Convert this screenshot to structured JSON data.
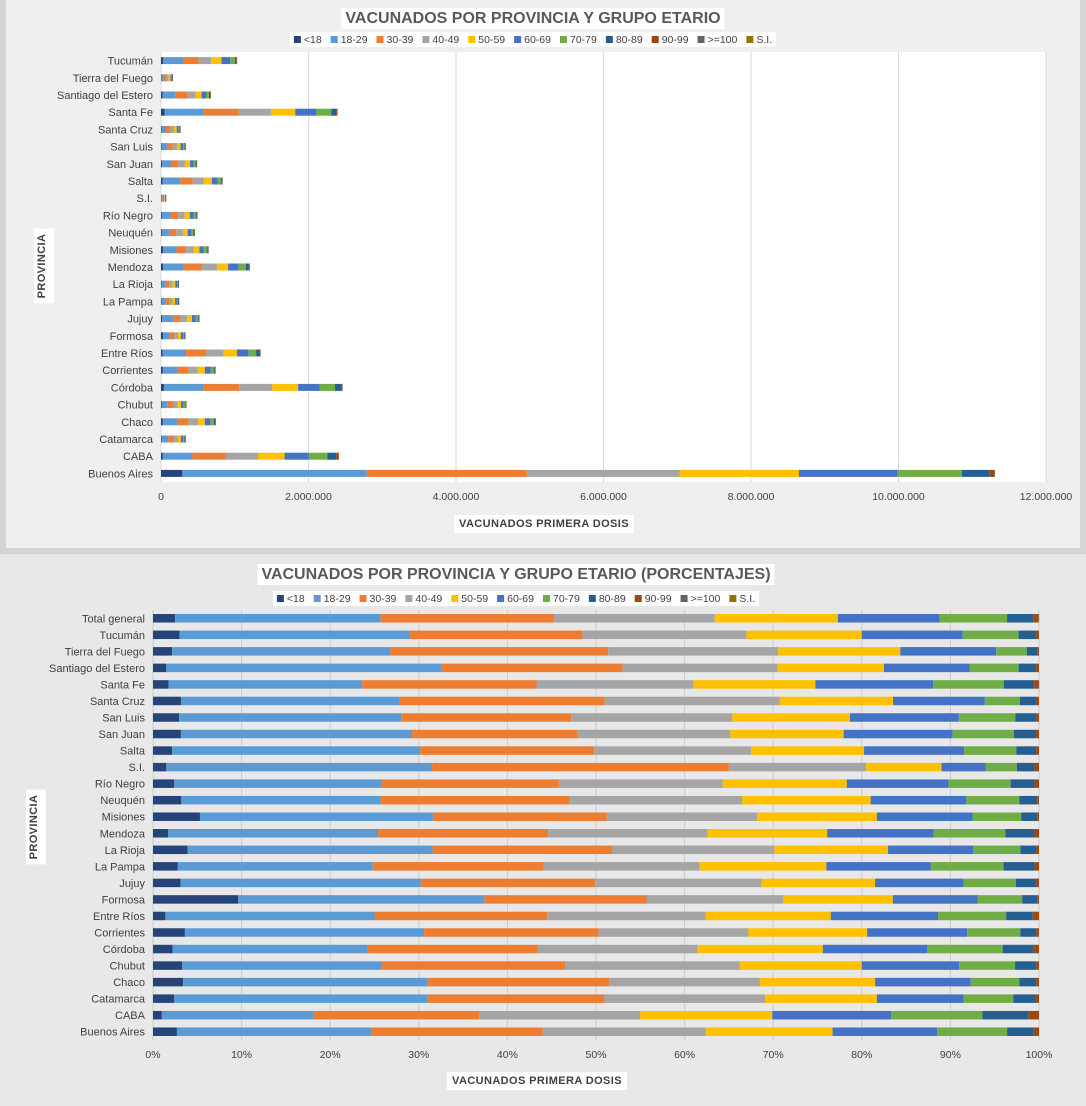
{
  "series_meta": [
    {
      "name": "<18",
      "color": "#264478"
    },
    {
      "name": "18-29",
      "color": "#5b9bd5"
    },
    {
      "name": "30-39",
      "color": "#ed7d31"
    },
    {
      "name": "40-49",
      "color": "#a5a5a5"
    },
    {
      "name": "50-59",
      "color": "#ffc000"
    },
    {
      "name": "60-69",
      "color": "#4472c4"
    },
    {
      "name": "70-79",
      "color": "#70ad47"
    },
    {
      "name": "80-89",
      "color": "#255e91"
    },
    {
      "name": "90-99",
      "color": "#9e480e"
    },
    {
      "name": ">=100",
      "color": "#636363"
    },
    {
      "name": "S.I.",
      "color": "#997300"
    }
  ],
  "chart_data": [
    {
      "type": "bar",
      "orientation": "horizontal",
      "stacked": true,
      "title": "VACUNADOS POR PROVINCIA Y GRUPO ETARIO",
      "xlabel": "VACUNADOS PRIMERA  DOSIS",
      "ylabel": "PROVINCIA",
      "xlim": [
        0,
        12000000
      ],
      "xticks": [
        "0",
        "2.000.000",
        "4.000.000",
        "6.000.000",
        "8.000.000",
        "10.000.000",
        "12.000.000"
      ],
      "xtick_values": [
        0,
        2000000,
        4000000,
        6000000,
        8000000,
        10000000,
        12000000
      ],
      "legend": [
        "<18",
        "18-29",
        "30-39",
        "40-49",
        "50-59",
        "60-69",
        "70-79",
        "80-89",
        "90-99",
        ">=100",
        "S.I."
      ],
      "categories": [
        "Tucumán",
        "Tierra del Fuego",
        "Santiago del Estero",
        "Santa Fe",
        "Santa Cruz",
        "San Luis",
        "San Juan",
        "Salta",
        "S.I.",
        "Río Negro",
        "Neuquén",
        "Misiones",
        "Mendoza",
        "La Rioja",
        "La Pampa",
        "Jujuy",
        "Formosa",
        "Entre Ríos",
        "Corrientes",
        "Córdoba",
        "Chubut",
        "Chaco",
        "Catamarca",
        "CABA",
        "Buenos Aires"
      ],
      "values": [
        [
          30000,
          280000,
          200000,
          170000,
          140000,
          120000,
          60000,
          20000,
          5000,
          300,
          0
        ],
        [
          3000,
          30000,
          40000,
          30000,
          25000,
          15000,
          8000,
          3000,
          500,
          50,
          0
        ],
        [
          20000,
          180000,
          160000,
          110000,
          80000,
          60000,
          40000,
          15000,
          3000,
          200,
          0
        ],
        [
          50000,
          520000,
          480000,
          440000,
          330000,
          290000,
          200000,
          65000,
          12000,
          500,
          0
        ],
        [
          8000,
          60000,
          60000,
          50000,
          35000,
          25000,
          15000,
          4000,
          800,
          50,
          0
        ],
        [
          10000,
          80000,
          70000,
          60000,
          45000,
          35000,
          20000,
          7000,
          1000,
          50,
          0
        ],
        [
          15000,
          120000,
          100000,
          90000,
          70000,
          50000,
          25000,
          10000,
          2000,
          100,
          0
        ],
        [
          20000,
          240000,
          170000,
          150000,
          110000,
          80000,
          40000,
          15000,
          3000,
          200,
          0
        ],
        [
          1000,
          20000,
          20000,
          10000,
          5000,
          3000,
          2000,
          1000,
          100,
          0,
          0
        ],
        [
          12000,
          120000,
          100000,
          90000,
          70000,
          50000,
          30000,
          12000,
          2000,
          100,
          0
        ],
        [
          12000,
          100000,
          95000,
          90000,
          65000,
          50000,
          28000,
          10000,
          2000,
          100,
          0
        ],
        [
          30000,
          180000,
          130000,
          100000,
          80000,
          60000,
          40000,
          15000,
          3000,
          200,
          0
        ],
        [
          30000,
          280000,
          240000,
          210000,
          150000,
          140000,
          100000,
          40000,
          8000,
          300,
          0
        ],
        [
          8000,
          55000,
          50000,
          45000,
          35000,
          25000,
          12000,
          5000,
          800,
          50,
          0
        ],
        [
          6000,
          60000,
          50000,
          40000,
          35000,
          25000,
          15000,
          6000,
          1000,
          50,
          0
        ],
        [
          15000,
          150000,
          100000,
          90000,
          65000,
          50000,
          30000,
          12000,
          2000,
          100,
          0
        ],
        [
          30000,
          90000,
          60000,
          50000,
          40000,
          30000,
          17000,
          7000,
          1000,
          100,
          0
        ],
        [
          20000,
          320000,
          270000,
          240000,
          180000,
          160000,
          100000,
          45000,
          8000,
          300,
          0
        ],
        [
          25000,
          200000,
          150000,
          120000,
          100000,
          80000,
          40000,
          15000,
          3000,
          200,
          0
        ],
        [
          40000,
          540000,
          480000,
          450000,
          350000,
          290000,
          210000,
          80000,
          15000,
          500,
          0
        ],
        [
          12000,
          80000,
          70000,
          65000,
          45000,
          35000,
          20000,
          9000,
          2000,
          100,
          0
        ],
        [
          25000,
          200000,
          150000,
          130000,
          90000,
          75000,
          45000,
          17000,
          3000,
          200,
          0
        ],
        [
          10000,
          90000,
          70000,
          60000,
          40000,
          30000,
          18000,
          8000,
          1000,
          100,
          0
        ],
        [
          25000,
          400000,
          450000,
          440000,
          360000,
          330000,
          250000,
          120000,
          30000,
          1000,
          0
        ],
        [
          290000,
          2500000,
          2170000,
          2070000,
          1620000,
          1340000,
          870000,
          370000,
          70000,
          3000,
          0
        ]
      ]
    },
    {
      "type": "bar",
      "orientation": "horizontal",
      "stacked": true,
      "percent": true,
      "title": "VACUNADOS POR PROVINCIA Y GRUPO ETARIO (PORCENTAJES)",
      "xlabel": "VACUNADOS PRIMERA  DOSIS",
      "ylabel": "PROVINCIA",
      "xlim": [
        0,
        100
      ],
      "xticks": [
        "0%",
        "10%",
        "20%",
        "30%",
        "40%",
        "50%",
        "60%",
        "70%",
        "80%",
        "90%",
        "100%"
      ],
      "xtick_values": [
        0,
        10,
        20,
        30,
        40,
        50,
        60,
        70,
        80,
        90,
        100
      ],
      "legend": [
        "<18",
        "18-29",
        "30-39",
        "40-49",
        "50-59",
        "60-69",
        "70-79",
        "80-89",
        "90-99",
        ">=100",
        "S.I."
      ],
      "categories": [
        "Total general",
        "Tucumán",
        "Tierra del Fuego",
        "Santiago del Estero",
        "Santa Fe",
        "Santa Cruz",
        "San Luis",
        "San Juan",
        "Salta",
        "S.I.",
        "Río Negro",
        "Neuquén",
        "Misiones",
        "Mendoza",
        "La Rioja",
        "La Pampa",
        "Jujuy",
        "Formosa",
        "Entre Ríos",
        "Corrientes",
        "Córdoba",
        "Chubut",
        "Chaco",
        "Catamarca",
        "CABA",
        "Buenos Aires"
      ],
      "values": [
        [
          2.5,
          23.2,
          19.5,
          18.2,
          13.9,
          11.5,
          7.6,
          3.0,
          0.5,
          0.05,
          0.05
        ],
        [
          3.0,
          26.0,
          19.5,
          18.5,
          13.0,
          11.4,
          6.3,
          2.0,
          0.3,
          0,
          0
        ],
        [
          2.2,
          25.0,
          25.0,
          19.5,
          14.0,
          11.0,
          3.5,
          1.2,
          0.2,
          0,
          0
        ],
        [
          1.5,
          31.0,
          20.5,
          17.5,
          12.0,
          9.7,
          5.5,
          2.0,
          0.3,
          0,
          0
        ],
        [
          1.8,
          22.2,
          20.0,
          18.0,
          14.0,
          13.5,
          8.1,
          3.5,
          0.5,
          0.05,
          0
        ],
        [
          3.2,
          25.0,
          23.5,
          20.0,
          13.0,
          10.5,
          4.0,
          1.9,
          0.3,
          0,
          0
        ],
        [
          3.0,
          25.5,
          19.5,
          18.5,
          13.5,
          12.5,
          6.5,
          2.4,
          0.3,
          0,
          0
        ],
        [
          3.2,
          26.5,
          19.0,
          17.5,
          13.0,
          12.5,
          7.0,
          2.5,
          0.4,
          0,
          0
        ],
        [
          2.2,
          28.5,
          20.0,
          18.0,
          13.0,
          11.5,
          6.0,
          2.3,
          0.3,
          0,
          0
        ],
        [
          1.5,
          30.0,
          33.5,
          15.5,
          8.5,
          5.0,
          3.5,
          2.0,
          0.5,
          0,
          0
        ],
        [
          2.4,
          23.4,
          20.0,
          18.5,
          14.0,
          11.5,
          7.0,
          2.7,
          0.5,
          0,
          0
        ],
        [
          3.2,
          22.5,
          21.3,
          19.5,
          14.5,
          10.8,
          6.0,
          2.0,
          0.2,
          0,
          0
        ],
        [
          5.3,
          26.3,
          19.6,
          17.0,
          13.5,
          10.8,
          5.5,
          1.8,
          0.2,
          0,
          0
        ],
        [
          1.7,
          23.7,
          19.2,
          18.0,
          13.5,
          12.0,
          8.1,
          3.3,
          0.5,
          0,
          0
        ],
        [
          3.9,
          27.6,
          20.2,
          18.3,
          12.8,
          9.6,
          5.3,
          1.8,
          0.3,
          0,
          0
        ],
        [
          2.8,
          22.0,
          19.3,
          17.6,
          14.3,
          11.8,
          8.2,
          3.5,
          0.5,
          0,
          0
        ],
        [
          3.1,
          27.1,
          19.7,
          18.8,
          12.8,
          10.0,
          5.9,
          2.3,
          0.3,
          0,
          0
        ],
        [
          9.6,
          27.8,
          18.3,
          15.4,
          12.4,
          9.6,
          5.0,
          1.7,
          0.2,
          0,
          0
        ],
        [
          1.4,
          23.6,
          19.5,
          17.9,
          14.1,
          12.1,
          7.7,
          3.0,
          0.7,
          0,
          0
        ],
        [
          3.6,
          27.0,
          19.7,
          16.9,
          13.4,
          11.3,
          6.0,
          1.8,
          0.3,
          0,
          0
        ],
        [
          2.2,
          22.0,
          19.2,
          18.0,
          14.2,
          11.8,
          8.5,
          3.5,
          0.6,
          0,
          0
        ],
        [
          3.3,
          22.5,
          20.7,
          19.7,
          13.8,
          11.0,
          6.3,
          2.4,
          0.3,
          0,
          0
        ],
        [
          3.4,
          27.6,
          20.5,
          17.0,
          13.0,
          10.8,
          5.5,
          1.9,
          0.3,
          0,
          0
        ],
        [
          2.4,
          28.6,
          19.9,
          18.2,
          12.6,
          9.8,
          5.6,
          2.5,
          0.4,
          0,
          0
        ],
        [
          1.0,
          17.1,
          18.7,
          18.2,
          14.9,
          13.4,
          10.3,
          5.2,
          1.2,
          0,
          0
        ],
        [
          2.7,
          21.9,
          19.4,
          18.4,
          14.3,
          11.8,
          7.9,
          3.0,
          0.6,
          0,
          0
        ]
      ]
    }
  ]
}
